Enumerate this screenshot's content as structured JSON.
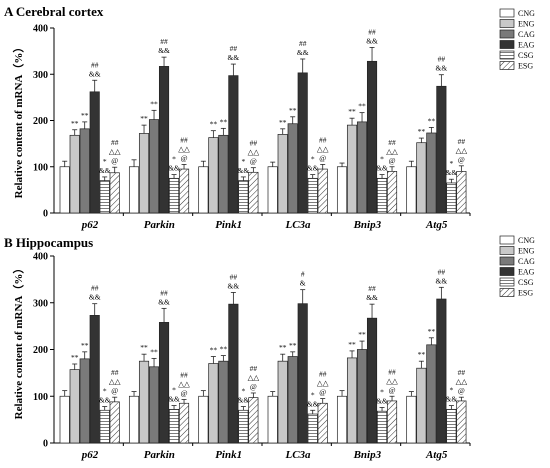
{
  "chart_data": [
    {
      "type": "bar",
      "title": "A Cerebral cortex",
      "ylabel": "Relative content of mRNA（%）",
      "ylim": [
        0,
        400
      ],
      "yticks": [
        0,
        100,
        200,
        300,
        400
      ],
      "categories": [
        "p62",
        "Parkin",
        "Pink1",
        "LC3a",
        "Bnip3",
        "Atg5"
      ],
      "series": [
        {
          "name": "CNG",
          "values": [
            100,
            100,
            100,
            100,
            100,
            100
          ],
          "err": [
            12,
            15,
            12,
            10,
            8,
            12
          ]
        },
        {
          "name": "ENG",
          "values": [
            168,
            172,
            163,
            170,
            190,
            152
          ],
          "err": [
            12,
            18,
            15,
            12,
            15,
            10
          ]
        },
        {
          "name": "CAG",
          "values": [
            182,
            202,
            168,
            193,
            197,
            173
          ],
          "err": [
            15,
            20,
            15,
            15,
            20,
            12
          ]
        },
        {
          "name": "EAG",
          "values": [
            262,
            317,
            297,
            303,
            328,
            274
          ],
          "err": [
            25,
            20,
            25,
            30,
            30,
            25
          ]
        },
        {
          "name": "CSG",
          "values": [
            70,
            75,
            70,
            75,
            75,
            65
          ],
          "err": [
            8,
            8,
            8,
            8,
            8,
            8
          ]
        },
        {
          "name": "ESG",
          "values": [
            87,
            95,
            88,
            95,
            90,
            90
          ],
          "err": [
            12,
            10,
            10,
            10,
            10,
            12
          ]
        }
      ],
      "annotations": [
        {
          "category": "p62",
          "series": "ENG",
          "text": [
            "**"
          ]
        },
        {
          "category": "p62",
          "series": "CAG",
          "text": [
            "**"
          ]
        },
        {
          "category": "p62",
          "series": "EAG",
          "text": [
            "&&",
            "##"
          ]
        },
        {
          "category": "p62",
          "series": "CSG",
          "text": [
            "&&",
            "*"
          ]
        },
        {
          "category": "p62",
          "series": "ESG",
          "text": [
            "@",
            "△△",
            "##"
          ]
        },
        {
          "category": "Parkin",
          "series": "ENG",
          "text": [
            "**"
          ]
        },
        {
          "category": "Parkin",
          "series": "CAG",
          "text": [
            "**"
          ]
        },
        {
          "category": "Parkin",
          "series": "EAG",
          "text": [
            "&&",
            "##"
          ]
        },
        {
          "category": "Parkin",
          "series": "CSG",
          "text": [
            "&&",
            "*"
          ]
        },
        {
          "category": "Parkin",
          "series": "ESG",
          "text": [
            "@",
            "△△",
            "##"
          ]
        },
        {
          "category": "Pink1",
          "series": "ENG",
          "text": [
            "**"
          ]
        },
        {
          "category": "Pink1",
          "series": "CAG",
          "text": [
            "**"
          ]
        },
        {
          "category": "Pink1",
          "series": "EAG",
          "text": [
            "&&",
            "##"
          ]
        },
        {
          "category": "Pink1",
          "series": "CSG",
          "text": [
            "&&",
            "*"
          ]
        },
        {
          "category": "Pink1",
          "series": "ESG",
          "text": [
            "@",
            "△△",
            "##"
          ]
        },
        {
          "category": "LC3a",
          "series": "ENG",
          "text": [
            "**"
          ]
        },
        {
          "category": "LC3a",
          "series": "CAG",
          "text": [
            "**"
          ]
        },
        {
          "category": "LC3a",
          "series": "EAG",
          "text": [
            "&&",
            "##"
          ]
        },
        {
          "category": "LC3a",
          "series": "CSG",
          "text": [
            "&&",
            "*"
          ]
        },
        {
          "category": "LC3a",
          "series": "ESG",
          "text": [
            "@",
            "△△",
            "##"
          ]
        },
        {
          "category": "Bnip3",
          "series": "ENG",
          "text": [
            "**"
          ]
        },
        {
          "category": "Bnip3",
          "series": "CAG",
          "text": [
            "**"
          ]
        },
        {
          "category": "Bnip3",
          "series": "EAG",
          "text": [
            "&&",
            "##"
          ]
        },
        {
          "category": "Bnip3",
          "series": "CSG",
          "text": [
            "&&",
            "*"
          ]
        },
        {
          "category": "Bnip3",
          "series": "ESG",
          "text": [
            "@",
            "△△",
            "##"
          ]
        },
        {
          "category": "Atg5",
          "series": "ENG",
          "text": [
            "**"
          ]
        },
        {
          "category": "Atg5",
          "series": "CAG",
          "text": [
            "**"
          ]
        },
        {
          "category": "Atg5",
          "series": "EAG",
          "text": [
            "&&",
            "##"
          ]
        },
        {
          "category": "Atg5",
          "series": "CSG",
          "text": [
            "&&",
            "*"
          ]
        },
        {
          "category": "Atg5",
          "series": "ESG",
          "text": [
            "@",
            "△△",
            "##"
          ]
        }
      ]
    },
    {
      "type": "bar",
      "title": "B Hippocampus",
      "ylabel": "Relative content of mRNA（%）",
      "ylim": [
        0,
        400
      ],
      "yticks": [
        0,
        100,
        200,
        300,
        400
      ],
      "categories": [
        "p62",
        "Parkin",
        "Pink1",
        "LC3a",
        "Bnip3",
        "Atg5"
      ],
      "series": [
        {
          "name": "CNG",
          "values": [
            100,
            100,
            100,
            100,
            100,
            100
          ],
          "err": [
            12,
            10,
            12,
            10,
            12,
            10
          ]
        },
        {
          "name": "ENG",
          "values": [
            157,
            175,
            170,
            175,
            182,
            160
          ],
          "err": [
            12,
            15,
            15,
            15,
            15,
            15
          ]
        },
        {
          "name": "CAG",
          "values": [
            180,
            163,
            175,
            185,
            200,
            210
          ],
          "err": [
            15,
            18,
            12,
            10,
            18,
            15
          ]
        },
        {
          "name": "EAG",
          "values": [
            273,
            258,
            297,
            298,
            267,
            308
          ],
          "err": [
            25,
            30,
            25,
            30,
            30,
            25
          ]
        },
        {
          "name": "CSG",
          "values": [
            70,
            72,
            70,
            62,
            68,
            72
          ],
          "err": [
            8,
            8,
            8,
            8,
            8,
            8
          ]
        },
        {
          "name": "ESG",
          "values": [
            88,
            85,
            97,
            85,
            90,
            90
          ],
          "err": [
            10,
            8,
            10,
            10,
            10,
            8
          ]
        }
      ],
      "annotations": [
        {
          "category": "p62",
          "series": "ENG",
          "text": [
            "**"
          ]
        },
        {
          "category": "p62",
          "series": "CAG",
          "text": [
            "**"
          ]
        },
        {
          "category": "p62",
          "series": "EAG",
          "text": [
            "&&",
            "##"
          ]
        },
        {
          "category": "p62",
          "series": "CSG",
          "text": [
            "&&",
            "*"
          ]
        },
        {
          "category": "p62",
          "series": "ESG",
          "text": [
            "@",
            "△△",
            "##"
          ]
        },
        {
          "category": "Parkin",
          "series": "ENG",
          "text": [
            "**"
          ]
        },
        {
          "category": "Parkin",
          "series": "CAG",
          "text": [
            "**"
          ]
        },
        {
          "category": "Parkin",
          "series": "EAG",
          "text": [
            "&&",
            "##"
          ]
        },
        {
          "category": "Parkin",
          "series": "CSG",
          "text": [
            "&&",
            "*"
          ]
        },
        {
          "category": "Parkin",
          "series": "ESG",
          "text": [
            "@",
            "△△",
            "##"
          ]
        },
        {
          "category": "Pink1",
          "series": "ENG",
          "text": [
            "**"
          ]
        },
        {
          "category": "Pink1",
          "series": "CAG",
          "text": [
            "**"
          ]
        },
        {
          "category": "Pink1",
          "series": "EAG",
          "text": [
            "&&",
            "##"
          ]
        },
        {
          "category": "Pink1",
          "series": "CSG",
          "text": [
            "&&",
            "*"
          ]
        },
        {
          "category": "Pink1",
          "series": "ESG",
          "text": [
            "@",
            "△△",
            "##"
          ]
        },
        {
          "category": "LC3a",
          "series": "ENG",
          "text": [
            "**"
          ]
        },
        {
          "category": "LC3a",
          "series": "CAG",
          "text": [
            "**"
          ]
        },
        {
          "category": "LC3a",
          "series": "EAG",
          "text": [
            "&",
            "#"
          ]
        },
        {
          "category": "LC3a",
          "series": "CSG",
          "text": [
            "&&",
            "*"
          ]
        },
        {
          "category": "LC3a",
          "series": "ESG",
          "text": [
            "@",
            "△△",
            "##"
          ]
        },
        {
          "category": "Bnip3",
          "series": "ENG",
          "text": [
            "**"
          ]
        },
        {
          "category": "Bnip3",
          "series": "CAG",
          "text": [
            "**"
          ]
        },
        {
          "category": "Bnip3",
          "series": "EAG",
          "text": [
            "&&",
            "##"
          ]
        },
        {
          "category": "Bnip3",
          "series": "CSG",
          "text": [
            "&&",
            "*"
          ]
        },
        {
          "category": "Bnip3",
          "series": "ESG",
          "text": [
            "@",
            "△△",
            "##"
          ]
        },
        {
          "category": "Atg5",
          "series": "ENG",
          "text": [
            "**"
          ]
        },
        {
          "category": "Atg5",
          "series": "CAG",
          "text": [
            "**"
          ]
        },
        {
          "category": "Atg5",
          "series": "EAG",
          "text": [
            "&&",
            "##"
          ]
        },
        {
          "category": "Atg5",
          "series": "CSG",
          "text": [
            "&&",
            "*"
          ]
        },
        {
          "category": "Atg5",
          "series": "ESG",
          "text": [
            "@",
            "△△",
            "##"
          ]
        }
      ]
    }
  ],
  "colors": {
    "CNG": "#ffffff",
    "ENG": "#c8c8c8",
    "CAG": "#7a7a7a",
    "EAG": "#333333",
    "CSG": "#ffffff",
    "ESG": "#ffffff"
  }
}
